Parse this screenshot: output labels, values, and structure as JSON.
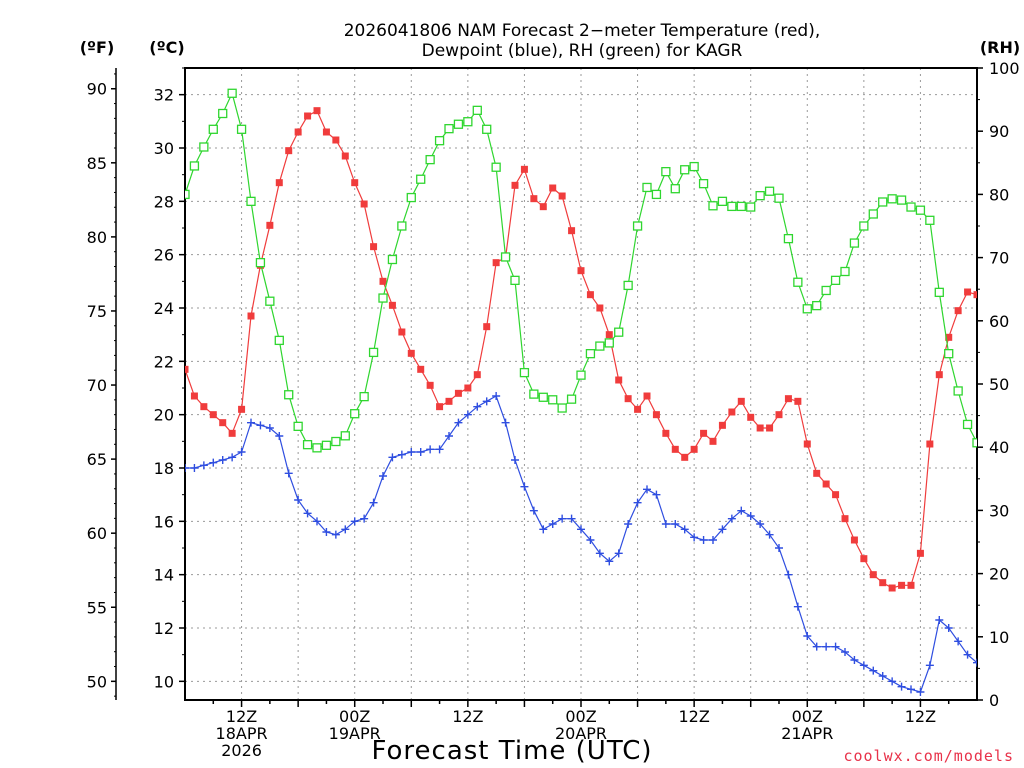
{
  "chart_data": {
    "type": "line",
    "title_lines": [
      "2026041806 NAM Forecast 2−meter Temperature (red),",
      "Dewpoint (blue), RH (green) for KAGR"
    ],
    "xlabel": "Forecast Time (UTC)",
    "credit": "coolwx.com/models",
    "left_units": [
      "(ºF)",
      "(ºC)"
    ],
    "right_unit": "(RH)",
    "x_range_hours": [
      0,
      84
    ],
    "y_celsius_range": [
      9.3,
      33.0
    ],
    "y_fahrenheit_ticks": [
      50,
      55,
      60,
      65,
      70,
      75,
      80,
      85,
      90
    ],
    "y_celsius_ticks": [
      10,
      12,
      14,
      16,
      18,
      20,
      22,
      24,
      26,
      28,
      30,
      32
    ],
    "rh_range": [
      0,
      100
    ],
    "rh_ticks": [
      0,
      10,
      20,
      30,
      40,
      50,
      60,
      70,
      80,
      90,
      100
    ],
    "x_ticks": [
      {
        "hour": 6,
        "lines": [
          "12Z",
          "18APR",
          "2026"
        ]
      },
      {
        "hour": 18,
        "lines": [
          "00Z",
          "19APR"
        ]
      },
      {
        "hour": 30,
        "lines": [
          "12Z"
        ]
      },
      {
        "hour": 42,
        "lines": [
          "00Z",
          "20APR"
        ]
      },
      {
        "hour": 54,
        "lines": [
          "12Z"
        ]
      },
      {
        "hour": 66,
        "lines": [
          "00Z",
          "21APR"
        ]
      },
      {
        "hour": 78,
        "lines": [
          "12Z"
        ]
      }
    ],
    "grid": true,
    "x_hours": [
      0,
      1,
      2,
      3,
      4,
      5,
      6,
      7,
      8,
      9,
      10,
      11,
      12,
      13,
      14,
      15,
      16,
      17,
      18,
      19,
      20,
      21,
      22,
      23,
      24,
      25,
      26,
      27,
      28,
      29,
      30,
      31,
      32,
      33,
      34,
      35,
      36,
      37,
      38,
      39,
      40,
      41,
      42,
      43,
      44,
      45,
      46,
      47,
      48,
      49,
      50,
      51,
      52,
      53,
      54,
      55,
      56,
      57,
      58,
      59,
      60,
      61,
      62,
      63,
      64,
      65,
      66,
      67,
      68,
      69,
      70,
      71,
      72,
      73,
      74,
      75,
      76,
      77,
      78,
      79,
      80,
      81,
      82,
      83,
      84
    ],
    "series": [
      {
        "name": "Temperature",
        "color": "#f03c3c",
        "marker": "filled-square",
        "unit": "C",
        "values": [
          21.7,
          20.7,
          20.3,
          20.0,
          19.7,
          19.3,
          20.2,
          23.7,
          25.6,
          27.1,
          28.7,
          29.9,
          30.6,
          31.2,
          31.4,
          30.6,
          30.3,
          29.7,
          28.7,
          27.9,
          26.3,
          25.0,
          24.1,
          23.1,
          22.3,
          21.7,
          21.1,
          20.3,
          20.5,
          20.8,
          21.0,
          21.5,
          23.3,
          25.7,
          25.9,
          28.6,
          29.2,
          28.1,
          27.8,
          28.5,
          28.2,
          26.9,
          25.4,
          24.5,
          24.0,
          23.0,
          21.3,
          20.6,
          20.2,
          20.7,
          20.0,
          19.3,
          18.7,
          18.4,
          18.7,
          19.3,
          19.0,
          19.6,
          20.1,
          20.5,
          19.9,
          19.5,
          19.5,
          20.0,
          20.6,
          20.5,
          18.9,
          17.8,
          17.4,
          17.0,
          16.1,
          15.3,
          14.6,
          14.0,
          13.7,
          13.5,
          13.6,
          13.6,
          14.8,
          18.9,
          21.5,
          22.9,
          23.9,
          24.6,
          24.5
        ]
      },
      {
        "name": "Dewpoint",
        "color": "#2f4ee0",
        "marker": "plus",
        "unit": "C",
        "values": [
          18.0,
          18.0,
          18.1,
          18.2,
          18.3,
          18.4,
          18.6,
          19.7,
          19.6,
          19.5,
          19.2,
          17.8,
          16.8,
          16.3,
          16.0,
          15.6,
          15.5,
          15.7,
          16.0,
          16.1,
          16.7,
          17.7,
          18.4,
          18.5,
          18.6,
          18.6,
          18.7,
          18.7,
          19.2,
          19.7,
          20.0,
          20.3,
          20.5,
          20.7,
          19.7,
          18.3,
          17.3,
          16.4,
          15.7,
          15.9,
          16.1,
          16.1,
          15.7,
          15.3,
          14.8,
          14.5,
          14.8,
          15.9,
          16.7,
          17.2,
          17.0,
          15.9,
          15.9,
          15.7,
          15.4,
          15.3,
          15.3,
          15.7,
          16.1,
          16.4,
          16.2,
          15.9,
          15.5,
          15.0,
          14.0,
          12.8,
          11.7,
          11.3,
          11.3,
          11.3,
          11.1,
          10.8,
          10.6,
          10.4,
          10.2,
          10.0,
          9.8,
          9.7,
          9.6,
          10.6,
          12.3,
          12.0,
          11.5,
          11.0,
          10.7
        ]
      },
      {
        "name": "RH",
        "color": "#2fd62f",
        "marker": "open-square",
        "unit": "%",
        "values": [
          80.0,
          84.5,
          87.5,
          90.3,
          92.8,
          96.0,
          90.3,
          78.9,
          69.2,
          63.1,
          56.9,
          48.3,
          43.3,
          40.4,
          39.9,
          40.3,
          40.9,
          41.8,
          45.3,
          48.0,
          55.0,
          63.6,
          69.7,
          75.0,
          79.5,
          82.4,
          85.5,
          88.5,
          90.4,
          91.1,
          91.5,
          93.3,
          90.3,
          84.3,
          70.1,
          66.4,
          51.8,
          48.4,
          47.9,
          47.5,
          46.2,
          47.6,
          51.4,
          54.8,
          56.0,
          56.5,
          58.2,
          65.6,
          75.0,
          81.1,
          80.0,
          83.6,
          80.9,
          83.9,
          84.4,
          81.7,
          78.2,
          78.9,
          78.1,
          78.1,
          78.0,
          79.8,
          80.5,
          79.4,
          73.0,
          66.1,
          61.9,
          62.4,
          64.8,
          66.4,
          67.8,
          72.3,
          75.0,
          76.9,
          78.8,
          79.3,
          79.1,
          78.0,
          77.5,
          75.9,
          64.5,
          54.8,
          48.9,
          43.6,
          40.7
        ]
      }
    ]
  }
}
